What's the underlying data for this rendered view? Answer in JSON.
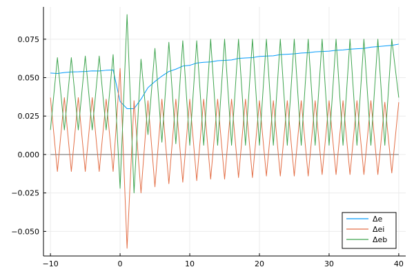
{
  "chart_data": {
    "type": "line",
    "title": "",
    "xlabel": "",
    "ylabel": "",
    "xlim": [
      -11,
      41
    ],
    "ylim": [
      -0.066,
      0.096
    ],
    "grid": true,
    "legend_position": "bottom-right",
    "x_ticks": [
      -10,
      0,
      10,
      20,
      30,
      40
    ],
    "x_tick_labels": [
      "−10",
      "0",
      "10",
      "20",
      "30",
      "40"
    ],
    "y_ticks": [
      -0.05,
      -0.025,
      0.0,
      0.025,
      0.05,
      0.075
    ],
    "y_tick_labels": [
      "−0.050",
      "−0.025",
      "0.000",
      "0.025",
      "0.050",
      "0.075"
    ],
    "x": [
      -10,
      -9,
      -8,
      -7,
      -6,
      -5,
      -4,
      -3,
      -2,
      -1,
      0,
      1,
      2,
      3,
      4,
      5,
      6,
      7,
      8,
      9,
      10,
      11,
      12,
      13,
      14,
      15,
      16,
      17,
      18,
      19,
      20,
      21,
      22,
      23,
      24,
      25,
      26,
      27,
      28,
      29,
      30,
      31,
      32,
      33,
      34,
      35,
      36,
      37,
      38,
      39,
      40
    ],
    "series": [
      {
        "name": "Δe",
        "color": "#009AFA",
        "values": [
          0.053,
          0.0527,
          0.0533,
          0.0537,
          0.0538,
          0.054,
          0.0544,
          0.0543,
          0.0548,
          0.055,
          0.0345,
          0.0298,
          0.0298,
          0.036,
          0.0435,
          0.0475,
          0.051,
          0.054,
          0.0555,
          0.0575,
          0.058,
          0.0595,
          0.06,
          0.0602,
          0.061,
          0.0612,
          0.0615,
          0.0625,
          0.0628,
          0.063,
          0.0638,
          0.064,
          0.0642,
          0.065,
          0.0652,
          0.0655,
          0.066,
          0.0662,
          0.0668,
          0.067,
          0.0672,
          0.0678,
          0.068,
          0.0685,
          0.0688,
          0.069,
          0.0698,
          0.0702,
          0.0706,
          0.071,
          0.0718
        ]
      },
      {
        "name": "Δei",
        "color": "#E36F47",
        "values": [
          0.037,
          -0.011,
          0.037,
          -0.011,
          0.037,
          -0.011,
          0.037,
          -0.011,
          0.036,
          -0.011,
          0.056,
          -0.061,
          0.035,
          -0.025,
          0.035,
          -0.021,
          0.036,
          -0.019,
          0.036,
          -0.018,
          0.036,
          -0.017,
          0.036,
          -0.016,
          0.036,
          -0.016,
          0.036,
          -0.015,
          0.036,
          -0.015,
          0.035,
          -0.014,
          0.035,
          -0.014,
          0.035,
          -0.014,
          0.035,
          -0.014,
          0.035,
          -0.013,
          0.035,
          -0.013,
          0.035,
          -0.013,
          0.035,
          -0.013,
          0.035,
          -0.013,
          0.034,
          -0.012,
          0.034
        ]
      },
      {
        "name": "Δeb",
        "color": "#3EA44E",
        "values": [
          0.016,
          0.063,
          0.016,
          0.063,
          0.016,
          0.064,
          0.016,
          0.064,
          0.016,
          0.065,
          -0.022,
          0.091,
          -0.025,
          0.062,
          0.013,
          0.069,
          0.008,
          0.073,
          0.007,
          0.074,
          0.006,
          0.074,
          0.006,
          0.075,
          0.006,
          0.075,
          0.006,
          0.075,
          0.006,
          0.075,
          0.006,
          0.075,
          0.006,
          0.075,
          0.006,
          0.075,
          0.006,
          0.075,
          0.006,
          0.075,
          0.006,
          0.075,
          0.006,
          0.075,
          0.006,
          0.075,
          0.006,
          0.075,
          0.006,
          0.075,
          0.037
        ]
      }
    ],
    "reference_line": {
      "y": 0.0,
      "color": "#777777"
    }
  },
  "colors": {
    "axis": "#000000",
    "grid": "#EBEBEB",
    "background": "#FFFFFF"
  }
}
